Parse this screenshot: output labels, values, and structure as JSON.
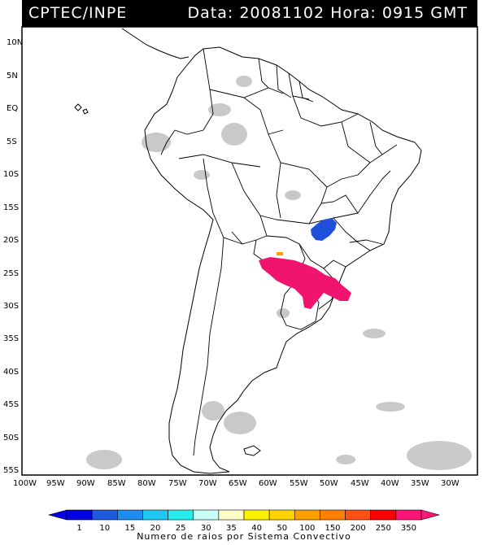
{
  "header": {
    "source": "CPTEC/INPE",
    "datetime": "Data: 20081102  Hora: 0915 GMT"
  },
  "map": {
    "lat_labels": [
      "10N",
      "5N",
      "EQ",
      "5S",
      "10S",
      "15S",
      "20S",
      "25S",
      "30S",
      "35S",
      "40S",
      "45S",
      "50S",
      "55S"
    ],
    "lon_labels": [
      "100W",
      "95W",
      "90W",
      "85W",
      "80W",
      "75W",
      "70W",
      "65W",
      "60W",
      "55W",
      "50W",
      "45W",
      "40W",
      "35W",
      "30W"
    ],
    "extent": {
      "lon": [
        -100,
        -27
      ],
      "lat": [
        -56,
        14
      ]
    }
  },
  "legend": {
    "title": "Numero de raios por Sistema Convectivo",
    "values": [
      "1",
      "10",
      "15",
      "20",
      "25",
      "30",
      "35",
      "40",
      "50",
      "100",
      "150",
      "200",
      "250",
      "350"
    ],
    "colors": [
      "#0000e0",
      "#1e5adc",
      "#1e8cf0",
      "#1ec8f0",
      "#28ecec",
      "#c8fff8",
      "#fffcc8",
      "#fff000",
      "#ffd200",
      "#ffa000",
      "#ff8000",
      "#ff5014",
      "#ff0000",
      "#ff1478"
    ]
  },
  "features": {
    "cluster_blue": {
      "color": "#1e50dc",
      "lon": -50.5,
      "lat": -19.0
    },
    "cluster_magenta": {
      "color": "#f0146e",
      "lon": -52.5,
      "lat": -26.5
    },
    "cluster_orange": {
      "color": "#ffa000",
      "lon": -57.5,
      "lat": -23.0
    }
  }
}
